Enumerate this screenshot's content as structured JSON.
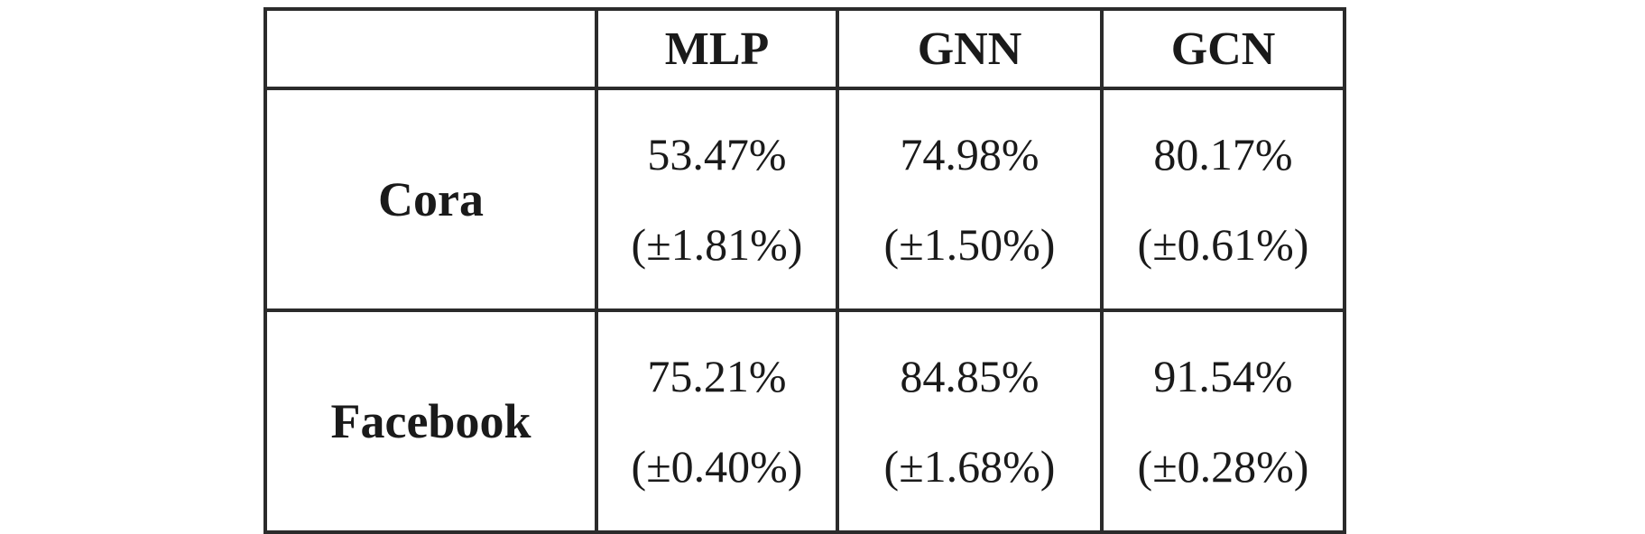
{
  "table": {
    "corner": "",
    "columns": [
      "MLP",
      "GNN",
      "GCN"
    ],
    "rows": [
      {
        "label": "Cora",
        "cells": [
          {
            "mean": "53.47%",
            "std": "(±1.81%)"
          },
          {
            "mean": "74.98%",
            "std": "(±1.50%)"
          },
          {
            "mean": "80.17%",
            "std": "(±0.61%)"
          }
        ]
      },
      {
        "label": "Facebook",
        "cells": [
          {
            "mean": "75.21%",
            "std": "(±0.40%)"
          },
          {
            "mean": "84.85%",
            "std": "(±1.68%)"
          },
          {
            "mean": "91.54%",
            "std": "(±0.28%)"
          }
        ]
      }
    ]
  }
}
